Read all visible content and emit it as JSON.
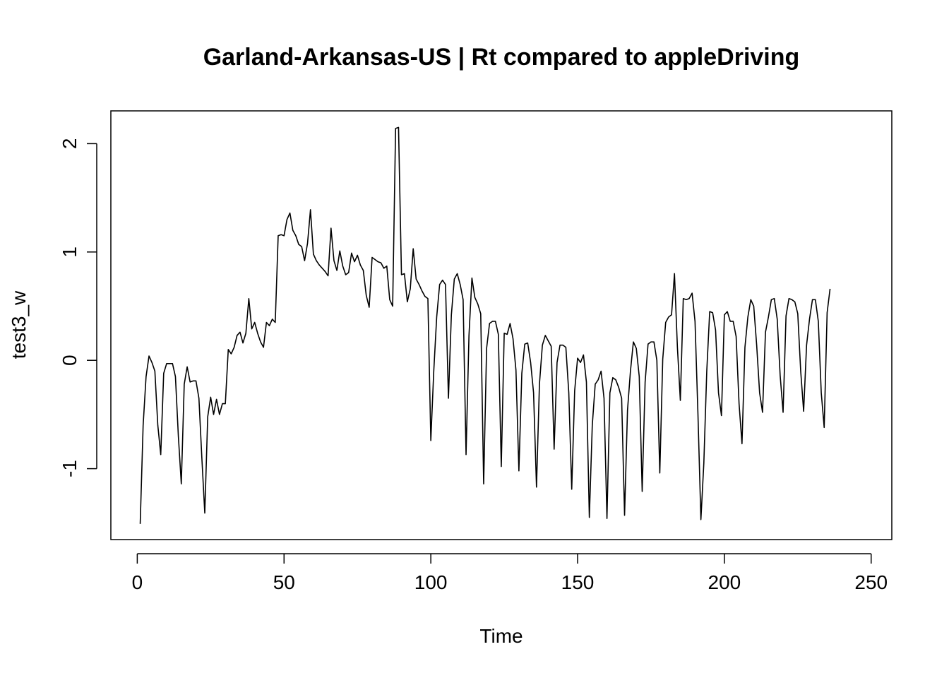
{
  "chart_data": {
    "type": "line",
    "title": "Garland-Arkansas-US | Rt compared to appleDriving",
    "xlabel": "Time",
    "ylabel": "test3_w",
    "xlim": [
      1,
      248
    ],
    "ylim": [
      -1.52,
      2.16
    ],
    "x_ticks": [
      0,
      50,
      100,
      150,
      200,
      250
    ],
    "x_tick_labels": [
      "0",
      "50",
      "100",
      "150",
      "200",
      "250"
    ],
    "y_ticks": [
      -1,
      0,
      1,
      2
    ],
    "y_tick_labels": [
      "-1",
      "0",
      "1",
      "2"
    ],
    "grid": false,
    "legend": "none",
    "line_color": "#000000",
    "series": [
      {
        "x_start": 1,
        "x_step": 1,
        "values": [
          -1.51,
          -0.6,
          -0.15,
          0.04,
          -0.02,
          -0.1,
          -0.6,
          -0.87,
          -0.12,
          -0.03,
          -0.03,
          -0.03,
          -0.15,
          -0.7,
          -1.14,
          -0.22,
          -0.06,
          -0.2,
          -0.19,
          -0.19,
          -0.35,
          -0.9,
          -1.41,
          -0.52,
          -0.34,
          -0.5,
          -0.36,
          -0.5,
          -0.4,
          -0.4,
          0.1,
          0.06,
          0.12,
          0.23,
          0.26,
          0.16,
          0.25,
          0.57,
          0.29,
          0.35,
          0.25,
          0.17,
          0.12,
          0.35,
          0.32,
          0.38,
          0.35,
          1.15,
          1.16,
          1.15,
          1.3,
          1.36,
          1.2,
          1.15,
          1.07,
          1.05,
          0.92,
          1.08,
          1.39,
          0.98,
          0.92,
          0.88,
          0.85,
          0.82,
          0.78,
          1.22,
          0.92,
          0.83,
          1.01,
          0.87,
          0.79,
          0.81,
          0.99,
          0.91,
          0.97,
          0.88,
          0.83,
          0.6,
          0.49,
          0.95,
          0.93,
          0.91,
          0.9,
          0.85,
          0.87,
          0.56,
          0.5,
          2.14,
          2.15,
          0.79,
          0.8,
          0.54,
          0.66,
          1.03,
          0.75,
          0.7,
          0.64,
          0.59,
          0.57,
          -0.74,
          -0.1,
          0.4,
          0.7,
          0.74,
          0.7,
          -0.35,
          0.42,
          0.75,
          0.8,
          0.7,
          0.56,
          -0.87,
          0.23,
          0.76,
          0.58,
          0.52,
          0.43,
          -1.14,
          0.11,
          0.34,
          0.36,
          0.36,
          0.24,
          -0.98,
          0.25,
          0.24,
          0.34,
          0.2,
          -0.09,
          -1.02,
          -0.12,
          0.15,
          0.16,
          -0.02,
          -0.3,
          -1.17,
          -0.22,
          0.14,
          0.23,
          0.18,
          0.13,
          -0.82,
          -0.02,
          0.14,
          0.14,
          0.12,
          -0.3,
          -1.19,
          -0.28,
          0.02,
          -0.02,
          0.05,
          -0.2,
          -1.45,
          -0.6,
          -0.22,
          -0.18,
          -0.1,
          -0.35,
          -1.46,
          -0.3,
          -0.16,
          -0.18,
          -0.25,
          -0.35,
          -1.43,
          -0.46,
          -0.1,
          0.17,
          0.11,
          -0.15,
          -1.21,
          -0.2,
          0.15,
          0.17,
          0.17,
          0.0,
          -1.04,
          0.01,
          0.35,
          0.4,
          0.42,
          0.8,
          0.12,
          -0.37,
          0.57,
          0.56,
          0.57,
          0.62,
          0.36,
          -0.5,
          -1.47,
          -0.95,
          -0.1,
          0.45,
          0.44,
          0.28,
          -0.3,
          -0.51,
          0.42,
          0.45,
          0.36,
          0.36,
          0.22,
          -0.4,
          -0.77,
          0.12,
          0.4,
          0.56,
          0.5,
          0.14,
          -0.3,
          -0.48,
          0.26,
          0.4,
          0.56,
          0.57,
          0.38,
          -0.14,
          -0.48,
          0.41,
          0.57,
          0.56,
          0.54,
          0.43,
          -0.1,
          -0.47,
          0.14,
          0.38,
          0.56,
          0.56,
          0.36,
          -0.3,
          -0.62,
          0.44,
          0.66
        ]
      }
    ]
  }
}
